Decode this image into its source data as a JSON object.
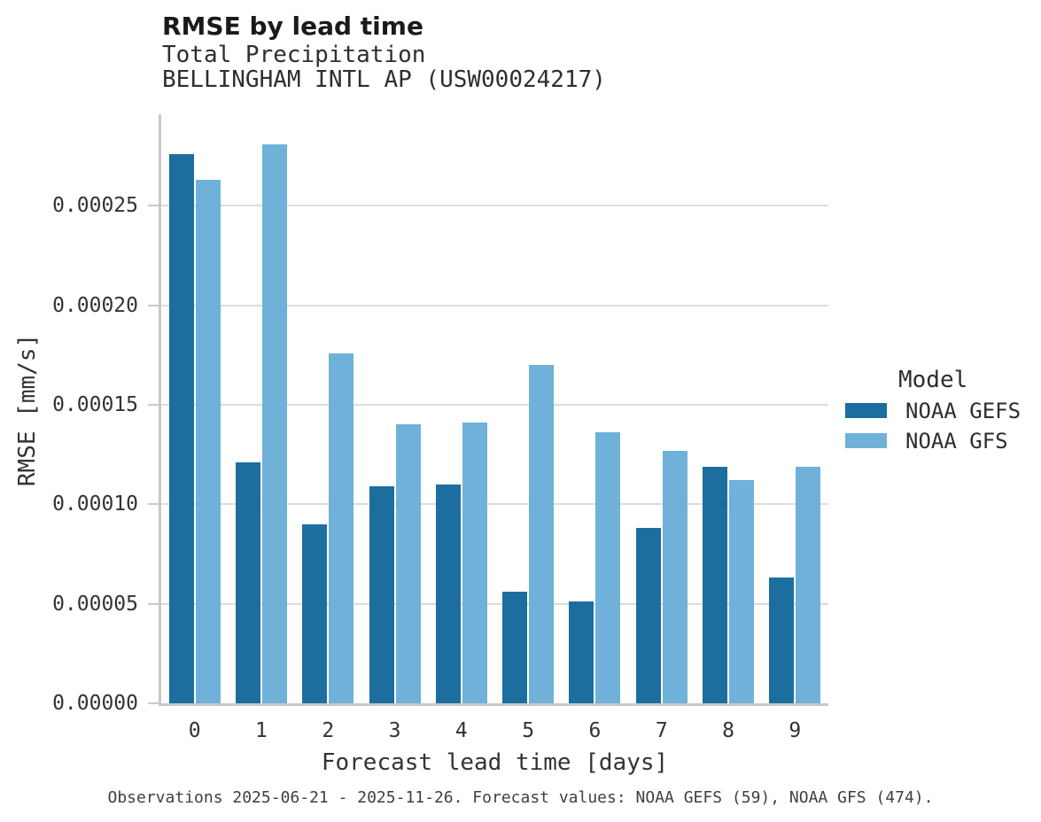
{
  "chart_data": {
    "type": "bar",
    "title": "RMSE by lead time",
    "subtitle_lines": [
      "Total Precipitation",
      "BELLINGHAM INTL AP (USW00024217)"
    ],
    "xlabel": "Forecast lead time [days]",
    "ylabel": "RMSE [mm/s]",
    "categories": [
      "0",
      "1",
      "2",
      "3",
      "4",
      "5",
      "6",
      "7",
      "8",
      "9"
    ],
    "series": [
      {
        "name": "NOAA GEFS",
        "color": "#1c6e9f",
        "values": [
          0.000276,
          0.000121,
          9e-05,
          0.000109,
          0.00011,
          5.6e-05,
          5.1e-05,
          8.8e-05,
          0.000119,
          6.3e-05
        ]
      },
      {
        "name": "NOAA GFS",
        "color": "#6fb1d9",
        "values": [
          0.000263,
          0.000281,
          0.000176,
          0.00014,
          0.000141,
          0.00017,
          0.000136,
          0.000127,
          0.000112,
          0.000119
        ]
      }
    ],
    "ylim": [
      0,
      0.000296
    ],
    "yticks": [
      0,
      5e-05,
      0.0001,
      0.00015,
      0.0002,
      0.00025
    ],
    "ytick_labels": [
      "0.00000",
      "0.00005",
      "0.00010",
      "0.00015",
      "0.00020",
      "0.00025"
    ],
    "grid": true,
    "legend": {
      "title": "Model",
      "position": "right-center"
    }
  },
  "footer": {
    "note": "Observations 2025-06-21 - 2025-11-26. Forecast values: NOAA GEFS (59), NOAA GFS (474)."
  },
  "colors": {
    "gridline": "#dcdcdc",
    "spine": "#c9c9c9"
  }
}
